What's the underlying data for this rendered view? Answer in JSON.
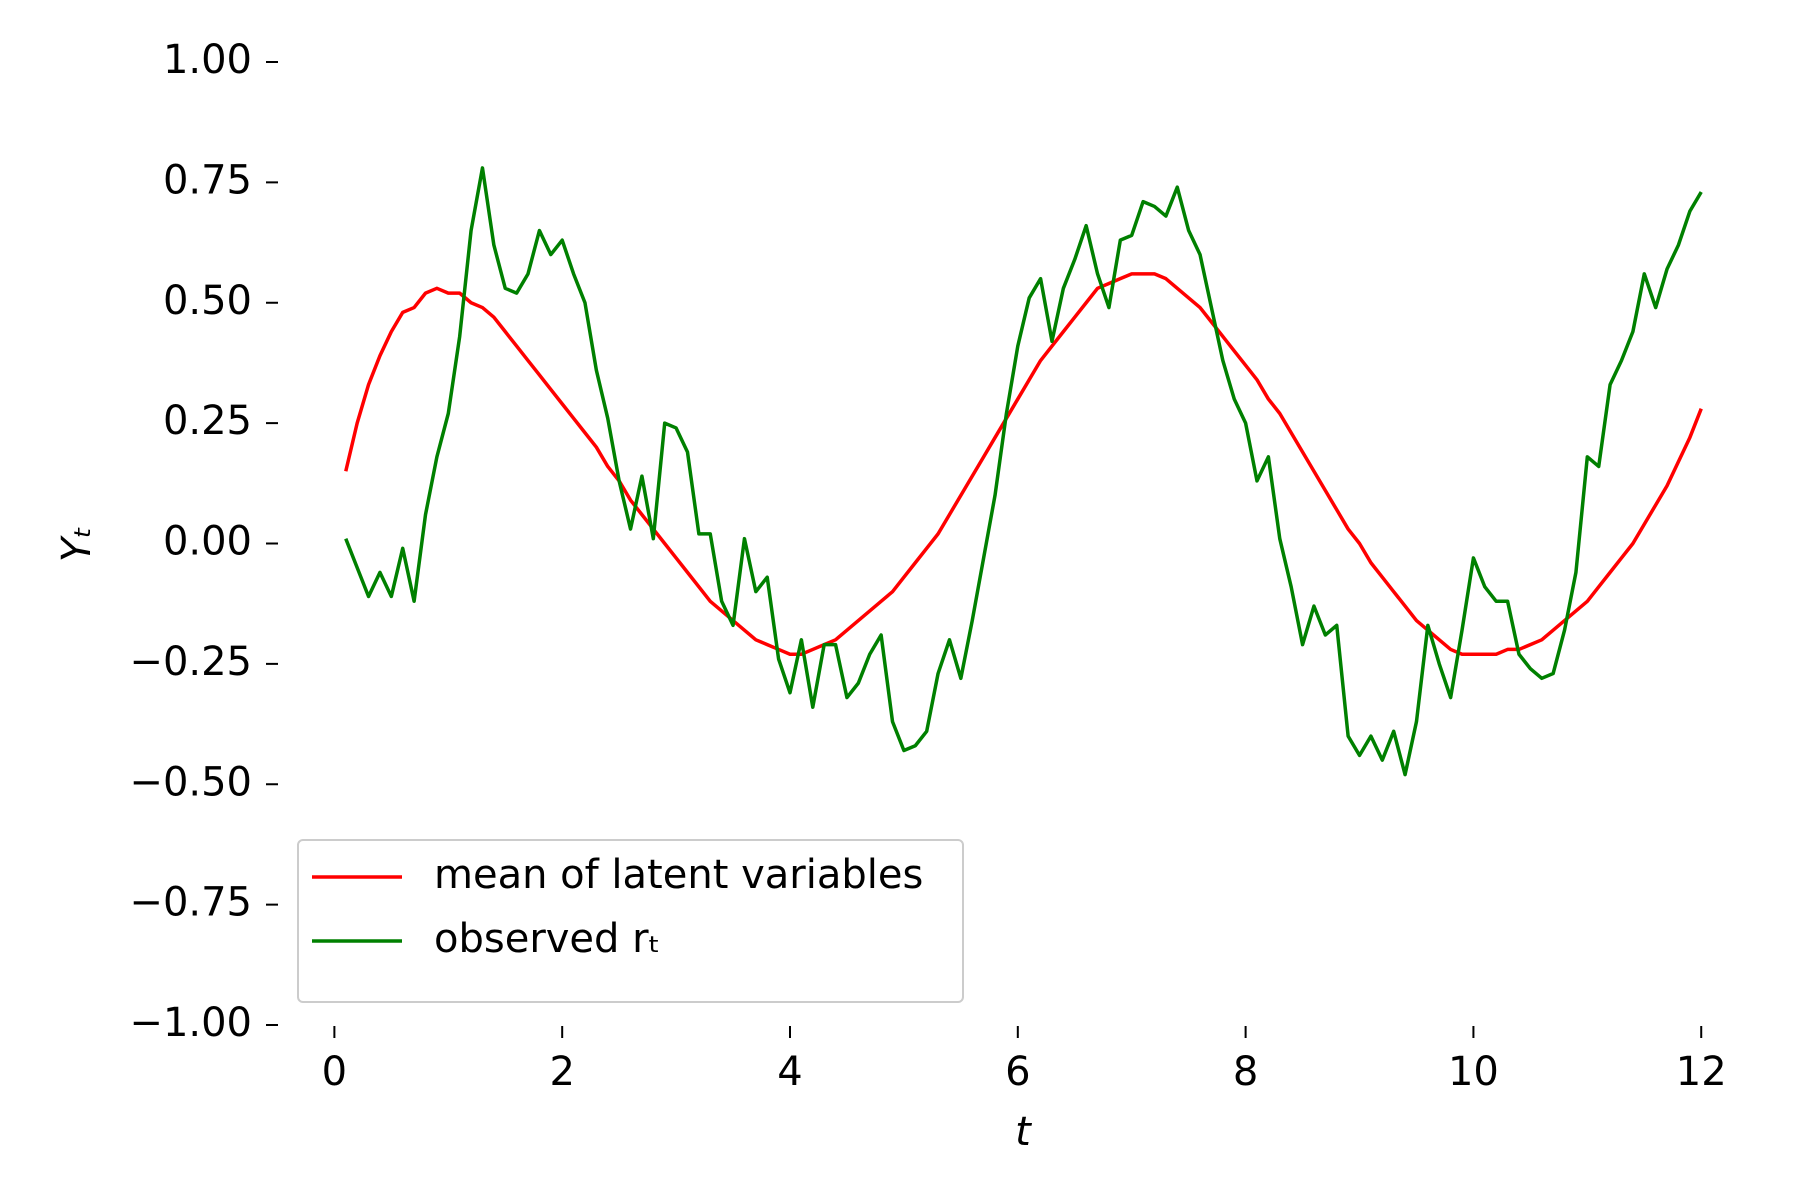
{
  "chart_data": {
    "type": "line",
    "x_label": "t",
    "y_label": "Yₜ",
    "x": [
      0.1,
      0.2,
      0.3,
      0.4,
      0.5,
      0.6,
      0.7,
      0.8,
      0.9,
      1.0,
      1.1,
      1.2,
      1.3,
      1.4,
      1.5,
      1.6,
      1.7,
      1.8,
      1.9,
      2.0,
      2.1,
      2.2,
      2.3,
      2.4,
      2.5,
      2.6,
      2.7,
      2.8,
      2.9,
      3.0,
      3.1,
      3.2,
      3.3,
      3.4,
      3.5,
      3.6,
      3.7,
      3.8,
      3.9,
      4.0,
      4.1,
      4.2,
      4.3,
      4.4,
      4.5,
      4.6,
      4.7,
      4.8,
      4.9,
      5.0,
      5.1,
      5.2,
      5.3,
      5.4,
      5.5,
      5.6,
      5.7,
      5.8,
      5.9,
      6.0,
      6.1,
      6.2,
      6.3,
      6.4,
      6.5,
      6.6,
      6.7,
      6.8,
      6.9,
      7.0,
      7.1,
      7.2,
      7.3,
      7.4,
      7.5,
      7.6,
      7.7,
      7.8,
      7.9,
      8.0,
      8.1,
      8.2,
      8.3,
      8.4,
      8.5,
      8.6,
      8.7,
      8.8,
      8.9,
      9.0,
      9.1,
      9.2,
      9.3,
      9.4,
      9.5,
      9.6,
      9.7,
      9.8,
      9.9,
      10.0,
      10.1,
      10.2,
      10.3,
      10.4,
      10.5,
      10.6,
      10.7,
      10.8,
      10.9,
      11.0,
      11.1,
      11.2,
      11.3,
      11.4,
      11.5,
      11.6,
      11.7,
      11.8,
      11.9,
      12.0
    ],
    "series": [
      {
        "name": "mean of latent variables",
        "color": "#ff0000",
        "values": [
          0.15,
          0.25,
          0.33,
          0.39,
          0.44,
          0.48,
          0.49,
          0.52,
          0.53,
          0.52,
          0.52,
          0.5,
          0.49,
          0.47,
          0.44,
          0.41,
          0.38,
          0.35,
          0.32,
          0.29,
          0.26,
          0.23,
          0.2,
          0.16,
          0.13,
          0.09,
          0.06,
          0.03,
          0.0,
          -0.03,
          -0.06,
          -0.09,
          -0.12,
          -0.14,
          -0.16,
          -0.18,
          -0.2,
          -0.21,
          -0.22,
          -0.23,
          -0.23,
          -0.22,
          -0.21,
          -0.2,
          -0.18,
          -0.16,
          -0.14,
          -0.12,
          -0.1,
          -0.07,
          -0.04,
          -0.01,
          0.02,
          0.06,
          0.1,
          0.14,
          0.18,
          0.22,
          0.26,
          0.3,
          0.34,
          0.38,
          0.41,
          0.44,
          0.47,
          0.5,
          0.53,
          0.54,
          0.55,
          0.56,
          0.56,
          0.56,
          0.55,
          0.53,
          0.51,
          0.49,
          0.46,
          0.43,
          0.4,
          0.37,
          0.34,
          0.3,
          0.27,
          0.23,
          0.19,
          0.15,
          0.11,
          0.07,
          0.03,
          0.0,
          -0.04,
          -0.07,
          -0.1,
          -0.13,
          -0.16,
          -0.18,
          -0.2,
          -0.22,
          -0.23,
          -0.23,
          -0.23,
          -0.23,
          -0.22,
          -0.22,
          -0.21,
          -0.2,
          -0.18,
          -0.16,
          -0.14,
          -0.12,
          -0.09,
          -0.06,
          -0.03,
          0.0,
          0.04,
          0.08,
          0.12,
          0.17,
          0.22,
          0.28
        ]
      },
      {
        "name": "observed rₜ",
        "color": "#008000",
        "values": [
          0.01,
          -0.05,
          -0.11,
          -0.06,
          -0.11,
          -0.01,
          -0.12,
          0.06,
          0.18,
          0.27,
          0.43,
          0.65,
          0.78,
          0.62,
          0.53,
          0.52,
          0.56,
          0.65,
          0.6,
          0.63,
          0.56,
          0.5,
          0.36,
          0.26,
          0.13,
          0.03,
          0.14,
          0.01,
          0.25,
          0.24,
          0.19,
          0.02,
          0.02,
          -0.12,
          -0.17,
          0.01,
          -0.1,
          -0.07,
          -0.24,
          -0.31,
          -0.2,
          -0.34,
          -0.21,
          -0.21,
          -0.32,
          -0.29,
          -0.23,
          -0.19,
          -0.37,
          -0.43,
          -0.42,
          -0.39,
          -0.27,
          -0.2,
          -0.28,
          -0.16,
          -0.03,
          0.1,
          0.27,
          0.41,
          0.51,
          0.55,
          0.42,
          0.53,
          0.59,
          0.66,
          0.56,
          0.49,
          0.63,
          0.64,
          0.71,
          0.7,
          0.68,
          0.74,
          0.65,
          0.6,
          0.49,
          0.38,
          0.3,
          0.25,
          0.13,
          0.18,
          0.01,
          -0.09,
          -0.21,
          -0.13,
          -0.19,
          -0.17,
          -0.4,
          -0.44,
          -0.4,
          -0.45,
          -0.39,
          -0.48,
          -0.37,
          -0.17,
          -0.25,
          -0.32,
          -0.18,
          -0.03,
          -0.09,
          -0.12,
          -0.12,
          -0.23,
          -0.26,
          -0.28,
          -0.27,
          -0.18,
          -0.06,
          0.18,
          0.16,
          0.33,
          0.38,
          0.44,
          0.56,
          0.49,
          0.57,
          0.62,
          0.69,
          0.73
        ]
      }
    ],
    "xlim": [
      -0.495,
      12.595
    ],
    "xticks": [
      0,
      2,
      4,
      6,
      8,
      10,
      12
    ],
    "ylim": [
      -1,
      1
    ],
    "yticks": [
      {
        "value": -1,
        "label": "−1.00"
      },
      {
        "value": -0.75,
        "label": "−0.75"
      },
      {
        "value": -0.5,
        "label": "−0.50"
      },
      {
        "value": -0.25,
        "label": "−0.25"
      },
      {
        "value": 0,
        "label": "0.00"
      },
      {
        "value": 0.25,
        "label": "0.25"
      },
      {
        "value": 0.5,
        "label": "0.50"
      },
      {
        "value": 0.75,
        "label": "0.75"
      },
      {
        "value": 1,
        "label": "1.00"
      }
    ],
    "legend": "lower left"
  }
}
